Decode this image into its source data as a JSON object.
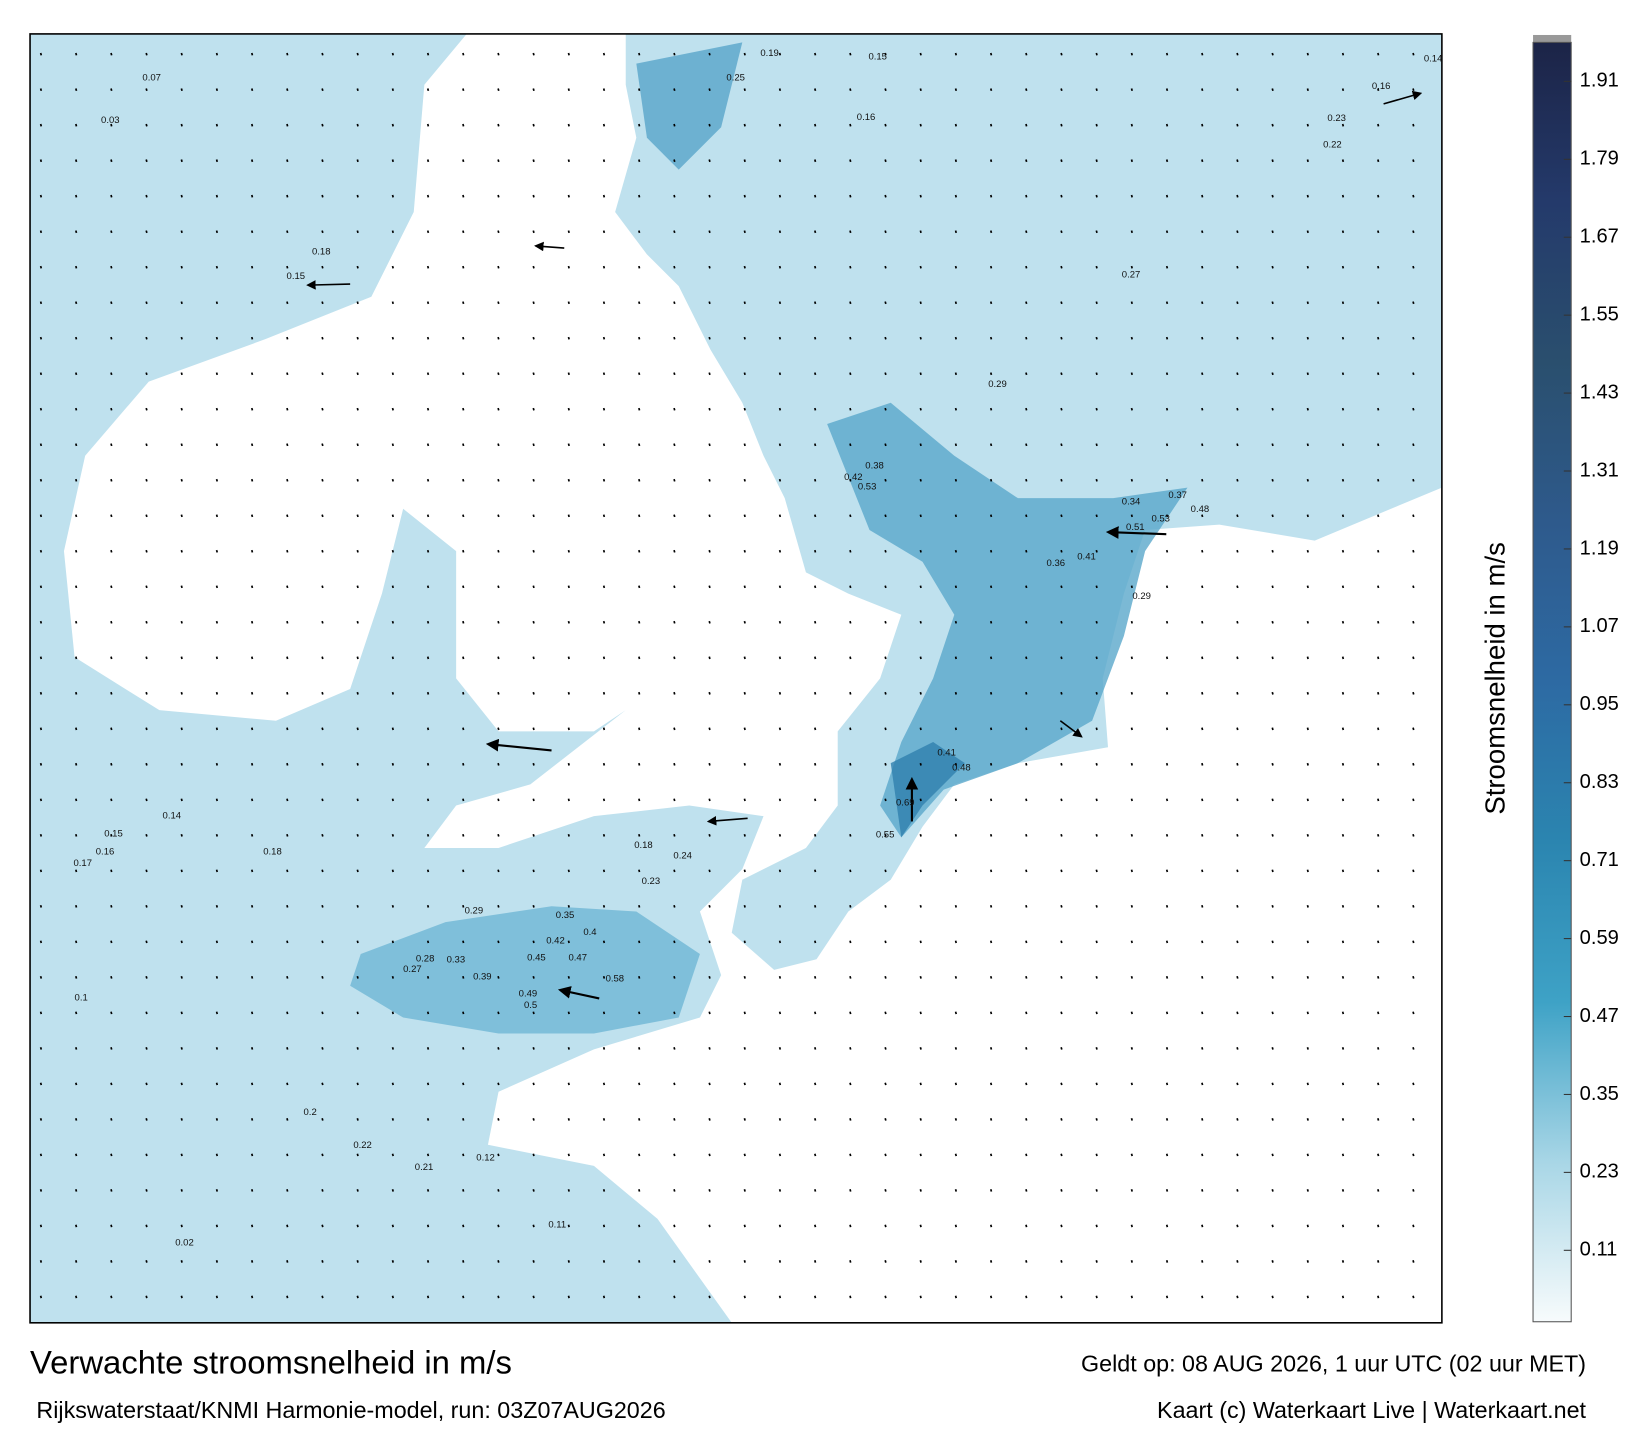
{
  "title": "Verwachte stroomsnelheid in m/s",
  "subtitle": "Rijkswaterstaat/KNMI Harmonie-model, run: 03Z07AUG2026",
  "valid": "Geldt op: 08 AUG 2026, 1 uur UTC (02 uur MET)",
  "credit": "Kaart (c) Waterkaart Live | Waterkaart.net",
  "chart_data": {
    "type": "colorbar",
    "y_label": "Stroomsnelheid in m/s",
    "ylim": [
      0,
      1.97
    ],
    "yticks": [
      0.11,
      0.23,
      0.35,
      0.47,
      0.59,
      0.71,
      0.83,
      0.95,
      1.07,
      1.19,
      1.31,
      1.43,
      1.55,
      1.67,
      1.79,
      1.91
    ],
    "colors": [
      "#f7fbfc",
      "#a8d6e6",
      "#3ea2c6",
      "#2b85b0",
      "#2d6aa3",
      "#2e5a8c",
      "#2a4f6e",
      "#243a6b",
      "#1c2447"
    ]
  },
  "map": {
    "speed_labels": [
      0.69,
      0.55,
      0.48,
      0.41,
      0.58,
      0.49,
      0.5,
      0.47,
      0.45,
      0.42,
      0.4,
      0.35,
      0.39,
      0.33,
      0.28,
      0.27,
      0.29,
      0.24,
      0.23,
      0.18,
      0.53,
      0.51,
      0.48,
      0.37,
      0.34,
      0.29,
      0.41,
      0.36,
      0.53,
      0.42,
      0.38,
      0.29,
      0.27,
      0.25,
      0.16,
      0.15,
      0.19,
      0.22,
      0.23,
      0.16,
      0.14,
      0.2,
      0.22,
      0.21,
      0.12,
      0.11,
      0.17,
      0.15,
      0.16,
      0.14,
      0.18,
      0.1,
      0.02,
      0.03,
      0.07,
      0.18,
      0.15
    ]
  }
}
